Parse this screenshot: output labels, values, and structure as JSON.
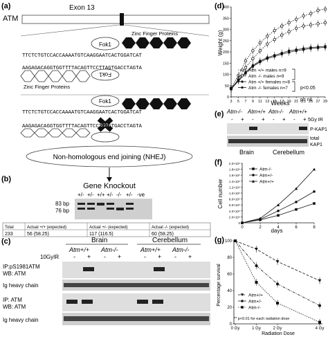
{
  "panel_labels": {
    "a": "(a)",
    "b": "(b)",
    "c": "(c)",
    "d": "(d)",
    "e": "(e)",
    "f": "(f)",
    "g": "(g)"
  },
  "panel_a": {
    "gene_label": "ATM",
    "exon_label": "Exon 13",
    "fok1_label": "Fok1",
    "zfp_top": "Zinc Finger Proteins",
    "zfp_bottom": "Zinc Finger Proteins",
    "seq1_top": "TTCTCTGTCCACCAAAATGTCAAGGAATCACTGGATCAT",
    "seq1_bot": "AAGAGACAGGTGGTTTTACAGTTCCTTAGTGACCTAGTA",
    "seq2_top": "TTCTCTGTCCACCAAAATGTCAAGGAATCACTGGATCAT",
    "seq2_bot": "AAGAGACAGGTGGTTTTACAGTTCCTTAGTGACCTAGTA",
    "dsb_label": "DSBs",
    "nhej_label": "Non-homologous end joining (NHEJ)",
    "knockout_label": "Gene Knockout"
  },
  "panel_b": {
    "lanes": [
      "+/-",
      "+/-",
      "+/+",
      "+/-",
      "-/-",
      "+/-",
      "-ve"
    ],
    "marker_83": "83 bp",
    "marker_76": "76 bp",
    "table_headers": [
      "Total",
      "Actual +/+ (expected)",
      "Actual +/- (expected)",
      "Actual -/- (expected)"
    ],
    "table_values": [
      "233",
      "56 (58.25)",
      "117 (116.5)",
      "60 (58.25)"
    ]
  },
  "panel_c": {
    "tissue_brain": "Brain",
    "tissue_cerebellum": "Cerebellum",
    "genotypes": [
      "Atm+/+",
      "Atm-/-",
      "Atm+/+",
      "Atm-/-"
    ],
    "ir_label": "10GyIR",
    "treatment_marks": [
      "-",
      "+",
      "-",
      "+",
      "-",
      "+",
      "-",
      "+"
    ],
    "blot1_line1": "IP:pS1981ATM",
    "blot1_line2": "WB: ATM",
    "blot2_label": "Ig heavy chain",
    "blot3_line1": "IP: ATM",
    "blot3_line2": "WB: ATM",
    "blot4_label": "Ig heavy chain"
  },
  "panel_e": {
    "genotypes": [
      "Atm-/-",
      "Atm+/+",
      "Atm-/-",
      "Atm+/+"
    ],
    "ir_label": "5Gy IR",
    "treatment_marks": [
      "-",
      "+",
      "-",
      "+",
      "-",
      "+",
      "-",
      "+"
    ],
    "blot1_label": "P-KAP1",
    "blot2_label_1": "total",
    "blot2_label_2": "KAP1",
    "tissue_brain": "Brain",
    "tissue_cerebellum": "Cerebellum"
  },
  "chart_data": [
    {
      "panel": "d",
      "type": "line",
      "xlabel": "Weeks",
      "ylabel": "Weight (g)",
      "x": [
        3,
        5,
        7,
        9,
        11,
        13,
        15,
        17,
        19,
        21,
        23,
        25,
        27,
        29
      ],
      "xticks": [
        3,
        5,
        7,
        9,
        11,
        13,
        15,
        17,
        19,
        21,
        23,
        25,
        27,
        29
      ],
      "xlim": [
        3,
        29
      ],
      "ylim": [
        0,
        400
      ],
      "yticks": [
        0,
        50,
        100,
        150,
        200,
        250,
        300,
        350,
        400
      ],
      "series": [
        {
          "name": "Atm +/+ males n=9",
          "marker": "open-circle",
          "dash": "dotted",
          "values": [
            40,
            95,
            160,
            205,
            240,
            270,
            295,
            315,
            330,
            345,
            360,
            370,
            385,
            390
          ]
        },
        {
          "name": "Atm -/- males n=9",
          "marker": "open-circle",
          "dash": "dotted",
          "values": [
            35,
            80,
            130,
            170,
            205,
            235,
            255,
            275,
            290,
            305,
            315,
            320,
            325,
            330
          ]
        },
        {
          "name": "Atm +/+ females n=8",
          "marker": "filled-circle",
          "dash": "solid",
          "values": [
            38,
            75,
            110,
            140,
            160,
            175,
            185,
            195,
            205,
            210,
            215,
            220,
            222,
            225
          ]
        },
        {
          "name": "Atm -/- females n=7",
          "marker": "filled-circle",
          "dash": "solid",
          "values": [
            35,
            70,
            105,
            135,
            155,
            170,
            180,
            190,
            198,
            205,
            210,
            215,
            218,
            220
          ]
        }
      ],
      "annotations": [
        "p<0.05",
        "p= ns"
      ]
    },
    {
      "panel": "f",
      "type": "line",
      "xlabel": "days",
      "ylabel": "Cell number",
      "x": [
        0,
        2,
        4,
        6,
        8
      ],
      "xticks": [
        0,
        2,
        4,
        6,
        8
      ],
      "xlim": [
        0,
        8
      ],
      "ylim": [
        0,
        2000000
      ],
      "yticks_labels": [
        "0",
        "2.0×10⁵",
        "4.0×10⁵",
        "6.0×10⁵",
        "8.0×10⁵",
        "1.0×10⁶",
        "1.2×10⁶",
        "1.4×10⁶",
        "1.6×10⁶",
        "1.8×10⁶",
        "2.0×10⁶"
      ],
      "yticks": [
        0,
        200000,
        400000,
        600000,
        800000,
        1000000,
        1200000,
        1400000,
        1600000,
        1800000,
        2000000
      ],
      "series": [
        {
          "name": "Atm-/-",
          "marker": "square",
          "values": [
            0,
            100000,
            250000,
            450000,
            650000
          ]
        },
        {
          "name": "Atm+/-",
          "marker": "circle",
          "values": [
            0,
            120000,
            400000,
            700000,
            1050000
          ]
        },
        {
          "name": "Atm+/+",
          "marker": "triangle",
          "values": [
            0,
            150000,
            600000,
            1150000,
            1800000
          ]
        }
      ]
    },
    {
      "panel": "g",
      "type": "line",
      "xlabel": "Radiation Dose",
      "ylabel": "Percentage survival",
      "categories": [
        "0 Gy",
        "1 Gy",
        "2 Gy",
        "4 Gy"
      ],
      "ylim": [
        0,
        100
      ],
      "yticks": [
        0,
        20,
        40,
        60,
        80,
        100
      ],
      "series": [
        {
          "name": "Atm+/+",
          "marker": "triangle-down",
          "dash": "dashed",
          "values": [
            100,
            90,
            75,
            52
          ]
        },
        {
          "name": "Atm+/-",
          "marker": "circle",
          "dash": "dash-dot",
          "values": [
            100,
            70,
            48,
            22
          ]
        },
        {
          "name": "Atm-/-",
          "marker": "square",
          "dash": "dotted",
          "values": [
            100,
            50,
            25,
            2
          ]
        }
      ],
      "note": "** p<0.01 for each radiation dose"
    }
  ]
}
